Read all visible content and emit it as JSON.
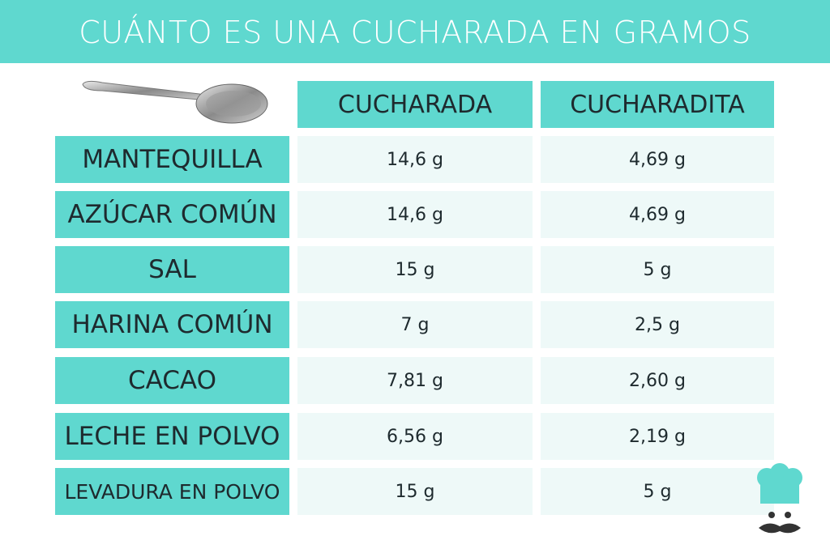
{
  "header": {
    "title": "CUÁNTO ES UNA CUCHARADA EN GRAMOS"
  },
  "table": {
    "columns": [
      "CUCHARADA",
      "CUCHARADITA"
    ],
    "rows": [
      [
        "MANTEQUILLA",
        "14,6 g",
        "4,69 g"
      ],
      [
        "AZÚCAR COMÚN",
        "14,6 g",
        "4,69 g"
      ],
      [
        "SAL",
        "15 g",
        "5 g"
      ],
      [
        "HARINA COMÚN",
        "7 g",
        "2,5 g"
      ],
      [
        "CACAO",
        "7,81 g",
        "2,60 g"
      ],
      [
        "LECHE EN POLVO",
        "6,56 g",
        "2,19 g"
      ],
      [
        "LEVADURA EN POLVO",
        "15 g",
        "5 g"
      ]
    ]
  }
}
